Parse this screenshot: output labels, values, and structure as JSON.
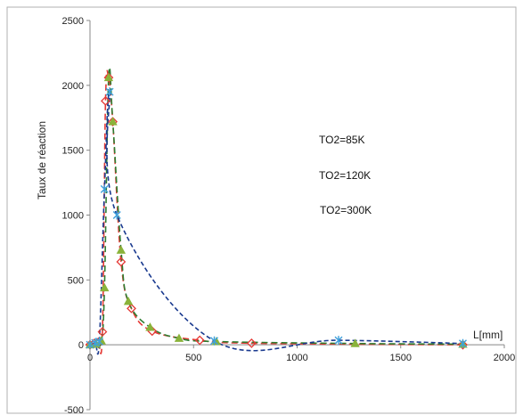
{
  "chart_data": {
    "type": "scatter",
    "title": "",
    "xlabel": "L[mm]",
    "ylabel": "Taux de réaction",
    "xlim": [
      0,
      2000
    ],
    "ylim": [
      -500,
      2500
    ],
    "xticks": [
      0,
      500,
      1000,
      1500,
      2000
    ],
    "yticks": [
      -500,
      0,
      500,
      1000,
      1500,
      2000,
      2500
    ],
    "x_tick_labels": [
      "0",
      "500",
      "1000",
      "1500",
      "2000"
    ],
    "y_tick_labels": [
      "-500",
      "0",
      "500",
      "1000",
      "1500",
      "2000",
      "2500"
    ],
    "grid": false,
    "annotations": [
      "TO2=85K",
      "TO2=120K",
      "TO2=300K"
    ],
    "series": [
      {
        "marker": "diamond",
        "color": "#e53935",
        "line_color": "#e53935",
        "points": [
          [
            0,
            0
          ],
          [
            20,
            10
          ],
          [
            40,
            20
          ],
          [
            60,
            100
          ],
          [
            75,
            1880
          ],
          [
            90,
            2060
          ],
          [
            110,
            1720
          ],
          [
            150,
            640
          ],
          [
            200,
            280
          ],
          [
            300,
            105
          ],
          [
            530,
            35
          ],
          [
            780,
            12
          ],
          [
            1800,
            0
          ]
        ]
      },
      {
        "marker": "triangle",
        "color": "#8ab33a",
        "line_color": "#2e7d32",
        "points": [
          [
            0,
            0
          ],
          [
            30,
            5
          ],
          [
            55,
            30
          ],
          [
            70,
            440
          ],
          [
            90,
            2060
          ],
          [
            110,
            1720
          ],
          [
            150,
            730
          ],
          [
            185,
            335
          ],
          [
            290,
            135
          ],
          [
            430,
            50
          ],
          [
            610,
            25
          ],
          [
            1280,
            10
          ],
          [
            1800,
            5
          ]
        ]
      },
      {
        "marker": "star",
        "color": "#3ea0dc",
        "line_color": "#1a3a8f",
        "points": [
          [
            0,
            0
          ],
          [
            25,
            15
          ],
          [
            45,
            25
          ],
          [
            70,
            1200
          ],
          [
            95,
            1950
          ],
          [
            130,
            1000
          ],
          [
            600,
            30
          ],
          [
            1200,
            35
          ],
          [
            1800,
            10
          ]
        ]
      }
    ]
  }
}
